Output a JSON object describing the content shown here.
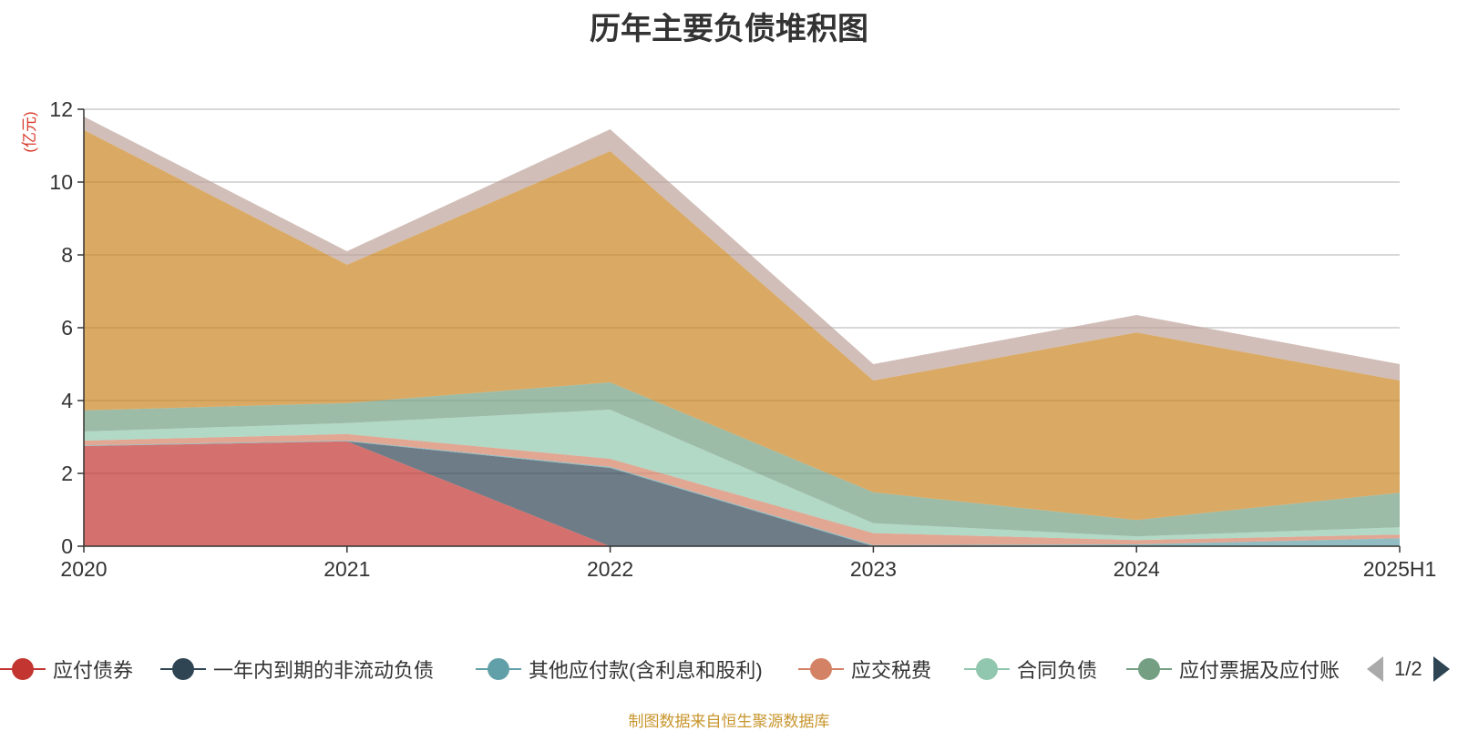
{
  "chart_data": {
    "type": "area",
    "stacked": true,
    "title": "历年主要负债堆积图",
    "ylabel": "(亿元)",
    "xlabel": "",
    "categories": [
      "2020",
      "2021",
      "2022",
      "2023",
      "2024",
      "2025H1"
    ],
    "ylim": [
      0,
      12
    ],
    "yticks": [
      0,
      2,
      4,
      6,
      8,
      10,
      12
    ],
    "grid": true,
    "legend_position": "bottom",
    "series": [
      {
        "name": "应付债券",
        "color": "#c23531",
        "values": [
          2.75,
          2.88,
          0.0,
          0.0,
          0.0,
          0.0
        ]
      },
      {
        "name": "一年内到期的非流动负债",
        "color": "#2f4554",
        "values": [
          0.0,
          0.0,
          2.15,
          0.0,
          0.0,
          0.0
        ]
      },
      {
        "name": "其他应付款(含利息和股利)",
        "color": "#61a0a8",
        "values": [
          0.02,
          0.02,
          0.03,
          0.03,
          0.05,
          0.22
        ]
      },
      {
        "name": "应交税费",
        "color": "#d48265",
        "values": [
          0.13,
          0.18,
          0.22,
          0.33,
          0.12,
          0.1
        ]
      },
      {
        "name": "合同负债",
        "color": "#91c7ae",
        "values": [
          0.25,
          0.3,
          1.35,
          0.27,
          0.1,
          0.2
        ]
      },
      {
        "name": "应付票据及应付账款",
        "color": "#749f83",
        "values": [
          0.58,
          0.55,
          0.75,
          0.85,
          0.45,
          0.95
        ]
      },
      {
        "name": "",
        "color": "#ca8622",
        "values": [
          7.7,
          3.8,
          6.35,
          3.07,
          5.15,
          3.08
        ]
      },
      {
        "name": "",
        "color": "#bda29a",
        "values": [
          0.37,
          0.37,
          0.6,
          0.45,
          0.48,
          0.45
        ]
      }
    ]
  },
  "legend": {
    "items": [
      {
        "label": "应付债券",
        "color": "#c23531"
      },
      {
        "label": "一年内到期的非流动负债",
        "color": "#2f4554"
      },
      {
        "label": "其他应付款(含利息和股利)",
        "color": "#61a0a8"
      },
      {
        "label": "应交税费",
        "color": "#d48265"
      },
      {
        "label": "合同负债",
        "color": "#91c7ae"
      },
      {
        "label": "应付票据及应付账",
        "color": "#749f83"
      }
    ],
    "page_text": "1/2"
  },
  "source_note": "制图数据来自恒生聚源数据库"
}
